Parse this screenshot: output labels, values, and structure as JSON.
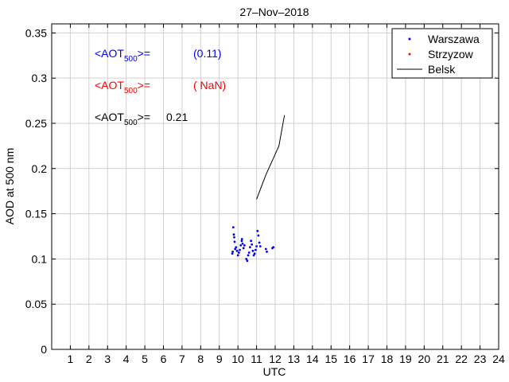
{
  "chart_data": {
    "type": "scatter",
    "title": "27–Nov–2018",
    "xlabel": "UTC",
    "ylabel": "AOD at 500 nm",
    "xlim": [
      0,
      24
    ],
    "ylim": [
      0,
      0.36
    ],
    "x_ticks": [
      "1",
      "2",
      "3",
      "4",
      "5",
      "6",
      "7",
      "8",
      "9",
      "10",
      "11",
      "12",
      "13",
      "14",
      "15",
      "16",
      "17",
      "18",
      "19",
      "20",
      "21",
      "22",
      "23",
      "24"
    ],
    "y_ticks": [
      "0",
      "0.05",
      "0.1",
      "0.15",
      "0.2",
      "0.25",
      "0.3",
      "0.35"
    ],
    "grid": true,
    "legend_position": "top-right",
    "series": [
      {
        "name": "Warszawa",
        "marker": "dot",
        "color": "#0000ff",
        "points": [
          [
            9.75,
            0.135
          ],
          [
            9.78,
            0.127
          ],
          [
            9.8,
            0.124
          ],
          [
            9.82,
            0.119
          ],
          [
            9.85,
            0.111
          ],
          [
            9.72,
            0.108
          ],
          [
            9.7,
            0.106
          ],
          [
            9.9,
            0.113
          ],
          [
            9.95,
            0.109
          ],
          [
            10.0,
            0.104
          ],
          [
            10.05,
            0.107
          ],
          [
            10.1,
            0.11
          ],
          [
            10.15,
            0.115
          ],
          [
            10.2,
            0.12
          ],
          [
            10.22,
            0.122
          ],
          [
            10.25,
            0.117
          ],
          [
            10.3,
            0.112
          ],
          [
            10.35,
            0.115
          ],
          [
            10.45,
            0.1
          ],
          [
            10.5,
            0.098
          ],
          [
            10.55,
            0.104
          ],
          [
            10.6,
            0.107
          ],
          [
            10.65,
            0.113
          ],
          [
            10.7,
            0.12
          ],
          [
            10.75,
            0.116
          ],
          [
            10.8,
            0.109
          ],
          [
            10.85,
            0.104
          ],
          [
            10.9,
            0.106
          ],
          [
            10.95,
            0.11
          ],
          [
            11.0,
            0.114
          ],
          [
            11.05,
            0.131
          ],
          [
            11.1,
            0.126
          ],
          [
            11.15,
            0.118
          ],
          [
            11.2,
            0.114
          ],
          [
            11.5,
            0.111
          ],
          [
            11.55,
            0.108
          ],
          [
            11.85,
            0.112
          ],
          [
            11.9,
            0.113
          ]
        ]
      },
      {
        "name": "Strzyzow",
        "marker": "dot",
        "color": "#ff0000",
        "points": []
      },
      {
        "name": "Belsk",
        "marker": "line",
        "color": "#000000",
        "points": [
          [
            11.0,
            0.166
          ],
          [
            11.5,
            0.193
          ],
          [
            12.2,
            0.225
          ],
          [
            12.5,
            0.259
          ]
        ]
      }
    ],
    "annotations": [
      {
        "prefix": "<AOT",
        "sub": "500",
        "suffix": ">=",
        "value": "(0.11)",
        "color": "#0000ff"
      },
      {
        "prefix": "<AOT",
        "sub": "500",
        "suffix": ">=",
        "value": "( NaN)",
        "color": "#ff0000"
      },
      {
        "prefix": "<AOT",
        "sub": "500",
        "suffix": ">=",
        "value": "0.21",
        "color": "#000000"
      }
    ]
  }
}
